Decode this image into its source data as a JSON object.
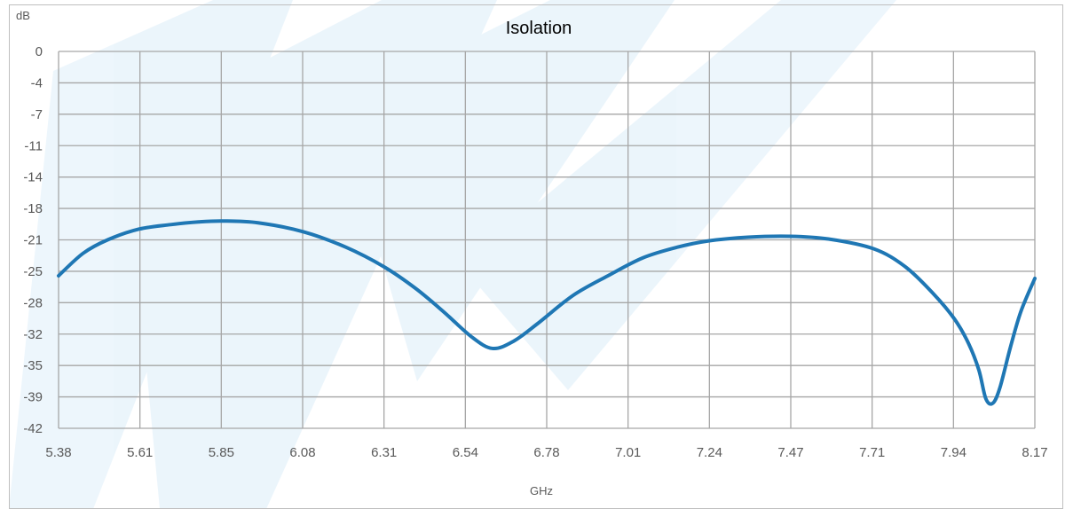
{
  "chart_data": {
    "type": "line",
    "title": "Isolation",
    "xlabel": "GHz",
    "ylabel": "dB",
    "xlim": [
      5.38,
      8.17
    ],
    "ylim": [
      -42,
      0
    ],
    "x_ticks": [
      "5.38",
      "5.61",
      "5.85",
      "6.08",
      "6.31",
      "6.54",
      "6.78",
      "7.01",
      "7.24",
      "7.47",
      "7.71",
      "7.94",
      "8.17"
    ],
    "y_ticks": [
      "0",
      "-4",
      "-7",
      "-11",
      "-14",
      "-18",
      "-21",
      "-25",
      "-28",
      "-32",
      "-35",
      "-39",
      "-42"
    ],
    "grid": true,
    "legend": "none",
    "series": [
      {
        "color": "#1f77b4",
        "x": [
          5.38,
          5.45,
          5.52,
          5.61,
          5.7,
          5.78,
          5.85,
          5.95,
          6.08,
          6.2,
          6.31,
          6.4,
          6.48,
          6.56,
          6.62,
          6.68,
          6.75,
          6.85,
          6.95,
          7.05,
          7.15,
          7.24,
          7.35,
          7.47,
          7.58,
          7.71,
          7.8,
          7.88,
          7.94,
          7.98,
          8.01,
          8.03,
          8.05,
          8.07,
          8.1,
          8.13,
          8.17
        ],
        "y": [
          -25.0,
          -22.5,
          -21.0,
          -19.8,
          -19.3,
          -19.0,
          -18.9,
          -19.1,
          -20.1,
          -21.8,
          -24.0,
          -26.4,
          -29.0,
          -31.8,
          -33.1,
          -32.3,
          -30.3,
          -27.2,
          -25.0,
          -23.0,
          -21.8,
          -21.1,
          -20.7,
          -20.6,
          -20.9,
          -22.0,
          -24.0,
          -27.0,
          -29.8,
          -32.5,
          -35.5,
          -38.7,
          -39.2,
          -37.5,
          -33.0,
          -29.0,
          -25.3
        ]
      }
    ]
  },
  "colors": {
    "grid": "#a6a6a6",
    "frame": "#bfbfbf",
    "text": "#595959",
    "title": "#000000",
    "watermark": "#4aa3df"
  }
}
